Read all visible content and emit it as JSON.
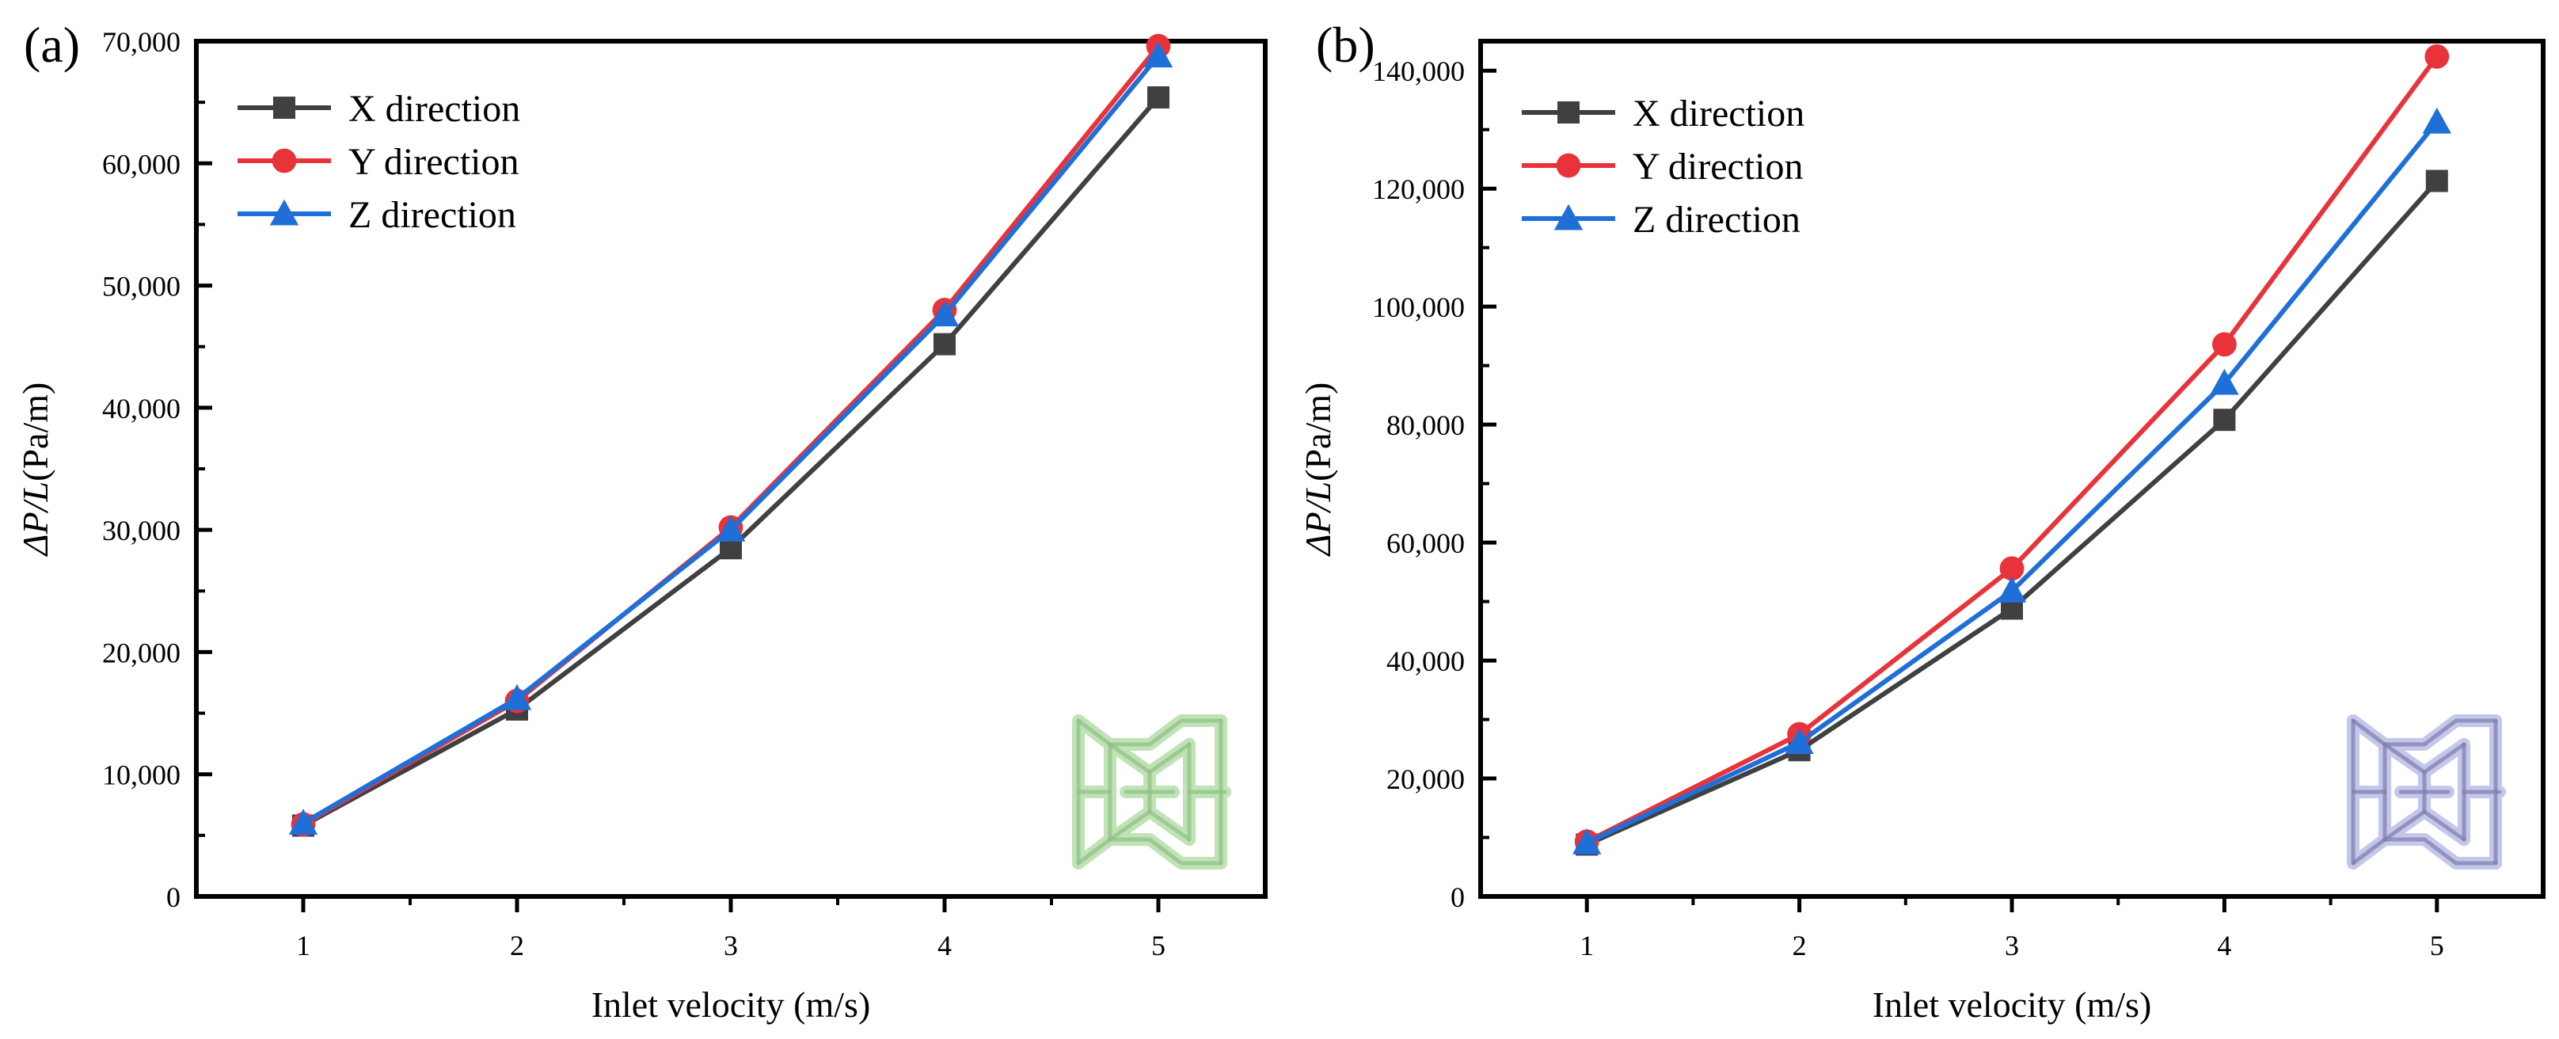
{
  "chart_data": [
    {
      "type": "line",
      "panel_label": "(a)",
      "xlabel": "Inlet velocity (m/s)",
      "ylabel_italic": "ΔP/L",
      "ylabel_unit": "(Pa/m)",
      "xlim": [
        0.5,
        5.5
      ],
      "ylim": [
        0,
        70000
      ],
      "x_ticks": [
        "1",
        "2",
        "3",
        "4",
        "5"
      ],
      "y_ticks": [
        "0",
        "10,000",
        "20,000",
        "30,000",
        "40,000",
        "50,000",
        "60,000",
        "70,000"
      ],
      "legend_position": "top-left",
      "inset_color": "#bfe3b4",
      "x": [
        1,
        2,
        3,
        4,
        5
      ],
      "series": [
        {
          "name": "X direction",
          "color": "#404040",
          "marker": "square",
          "values": [
            5800,
            15300,
            28500,
            45200,
            65400
          ]
        },
        {
          "name": "Y direction",
          "color": "#e8333a",
          "marker": "circle",
          "values": [
            5900,
            16000,
            30200,
            48000,
            69600
          ]
        },
        {
          "name": "Z direction",
          "color": "#1f6fd9",
          "marker": "triangle",
          "values": [
            6000,
            16200,
            30000,
            47600,
            68800
          ]
        }
      ]
    },
    {
      "type": "line",
      "panel_label": "(b)",
      "xlabel": "Inlet velocity (m/s)",
      "ylabel_italic": "ΔP/L",
      "ylabel_unit": "(Pa/m)",
      "xlim": [
        0.5,
        5.5
      ],
      "ylim": [
        0,
        145000
      ],
      "x_ticks": [
        "1",
        "2",
        "3",
        "4",
        "5"
      ],
      "y_ticks": [
        "0",
        "20,000",
        "40,000",
        "60,000",
        "80,000",
        "100,000",
        "120,000",
        "140,000"
      ],
      "legend_position": "top-left",
      "inset_color": "#c4c6ec",
      "x": [
        1,
        2,
        3,
        4,
        5
      ],
      "series": [
        {
          "name": "X direction",
          "color": "#404040",
          "marker": "square",
          "values": [
            8800,
            24800,
            48800,
            80800,
            121300
          ]
        },
        {
          "name": "Y direction",
          "color": "#e8333a",
          "marker": "circle",
          "values": [
            9300,
            27500,
            55600,
            93600,
            142400
          ]
        },
        {
          "name": "Z direction",
          "color": "#1f6fd9",
          "marker": "triangle",
          "values": [
            9100,
            26100,
            51800,
            87000,
            131300
          ]
        }
      ]
    }
  ]
}
